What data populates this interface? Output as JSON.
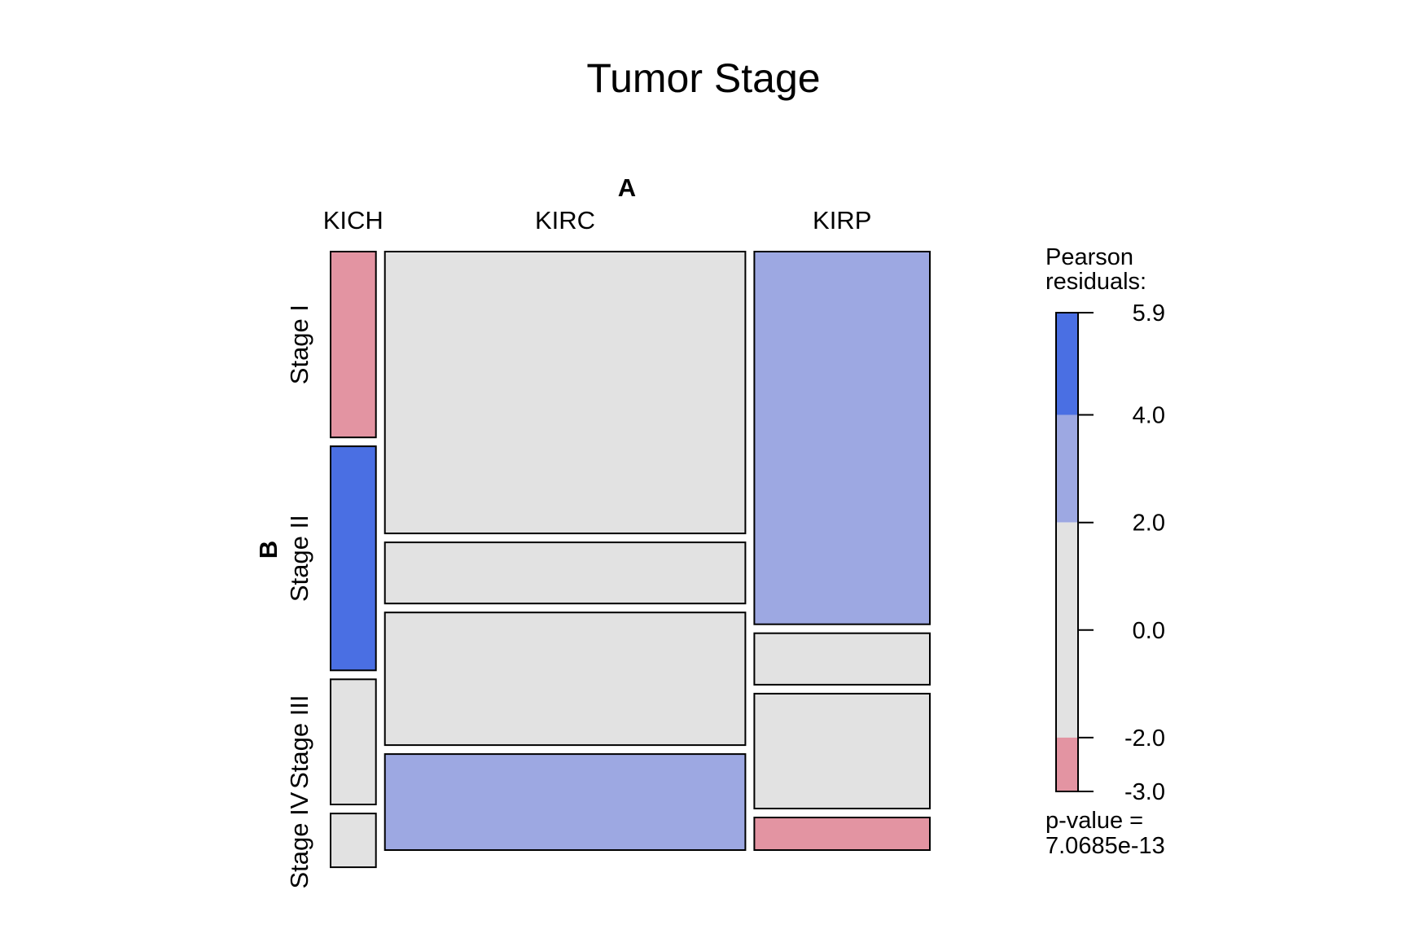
{
  "chart_data": {
    "type": "mosaic",
    "title": "Tumor Stage",
    "col_variable": "A",
    "row_variable": "B",
    "col_levels": [
      "KICH",
      "KIRC",
      "KIRP"
    ],
    "row_levels": [
      "Stage I",
      "Stage II",
      "Stage III",
      "Stage IV"
    ],
    "col_proportions": [
      0.078,
      0.62,
      0.302
    ],
    "cell_proportions_within_col": [
      [
        0.325,
        0.392,
        0.219,
        0.094
      ],
      [
        0.493,
        0.107,
        0.232,
        0.168
      ],
      [
        0.652,
        0.09,
        0.201,
        0.057
      ]
    ],
    "cell_shading": [
      [
        "neg_strong",
        "pos_strong",
        "neutral",
        "neutral"
      ],
      [
        "neutral",
        "neutral",
        "neutral",
        "pos_mild"
      ],
      [
        "pos_mild",
        "neutral",
        "neutral",
        "neg_strong"
      ]
    ],
    "legend": {
      "title_line1": "Pearson",
      "title_line2": "residuals:",
      "min": -3.0,
      "max": 5.9,
      "ticks": [
        "5.9",
        "4.0",
        "2.0",
        "0.0",
        "-2.0",
        "-3.0"
      ],
      "tick_values": [
        5.9,
        4.0,
        2.0,
        0.0,
        -2.0,
        -3.0
      ],
      "bands": [
        {
          "from": 4.0,
          "to": 5.9,
          "color": "#4a6fe3"
        },
        {
          "from": 2.0,
          "to": 4.0,
          "color": "#9da8e2"
        },
        {
          "from": -2.0,
          "to": 2.0,
          "color": "#e2e2e2"
        },
        {
          "from": -3.0,
          "to": -2.0,
          "color": "#e394a2"
        }
      ]
    },
    "pvalue_line1": "p-value =",
    "pvalue_line2": "7.0685e-13",
    "colors": {
      "pos_strong": "#4a6fe3",
      "pos_mild": "#9da8e2",
      "neutral": "#e2e2e2",
      "neg_strong": "#e394a2"
    }
  }
}
